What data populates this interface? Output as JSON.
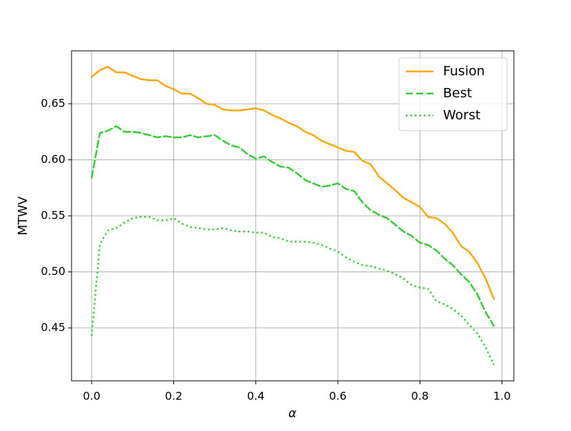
{
  "chart_data": {
    "type": "line",
    "xlabel": "α",
    "ylabel": "MTWV",
    "x": [
      0,
      0.02,
      0.04,
      0.06,
      0.08,
      0.1,
      0.12,
      0.14,
      0.16,
      0.18,
      0.2,
      0.22,
      0.24,
      0.26,
      0.28,
      0.3,
      0.32,
      0.34,
      0.36,
      0.38,
      0.4,
      0.42,
      0.44,
      0.46,
      0.48,
      0.5,
      0.52,
      0.54,
      0.56,
      0.58,
      0.6,
      0.62,
      0.64,
      0.66,
      0.68,
      0.7,
      0.72,
      0.74,
      0.76,
      0.78,
      0.8,
      0.82,
      0.84,
      0.86,
      0.88,
      0.9,
      0.92,
      0.94,
      0.96,
      0.98
    ],
    "series": [
      {
        "name": "Fusion",
        "color": "#ffa500",
        "linestyle": "solid",
        "values": [
          0.674,
          0.68,
          0.683,
          0.678,
          0.678,
          0.675,
          0.672,
          0.671,
          0.671,
          0.666,
          0.663,
          0.659,
          0.659,
          0.655,
          0.65,
          0.649,
          0.645,
          0.644,
          0.644,
          0.645,
          0.646,
          0.644,
          0.64,
          0.637,
          0.633,
          0.63,
          0.625,
          0.622,
          0.617,
          0.614,
          0.611,
          0.608,
          0.607,
          0.599,
          0.596,
          0.585,
          0.579,
          0.573,
          0.566,
          0.562,
          0.558,
          0.549,
          0.548,
          0.543,
          0.535,
          0.523,
          0.518,
          0.508,
          0.494,
          0.476
        ]
      },
      {
        "name": "Best",
        "color": "#32cd32",
        "linestyle": "dashed",
        "values": [
          0.584,
          0.624,
          0.626,
          0.63,
          0.625,
          0.625,
          0.624,
          0.622,
          0.62,
          0.621,
          0.62,
          0.62,
          0.622,
          0.62,
          0.621,
          0.622,
          0.617,
          0.613,
          0.611,
          0.605,
          0.601,
          0.603,
          0.598,
          0.594,
          0.593,
          0.588,
          0.582,
          0.579,
          0.576,
          0.577,
          0.579,
          0.574,
          0.572,
          0.562,
          0.555,
          0.551,
          0.548,
          0.542,
          0.536,
          0.532,
          0.526,
          0.524,
          0.519,
          0.512,
          0.506,
          0.498,
          0.491,
          0.48,
          0.464,
          0.452
        ]
      },
      {
        "name": "Worst",
        "color": "#32cd32",
        "linestyle": "dotted",
        "values": [
          0.443,
          0.525,
          0.537,
          0.539,
          0.544,
          0.548,
          0.549,
          0.549,
          0.546,
          0.546,
          0.548,
          0.543,
          0.54,
          0.539,
          0.538,
          0.538,
          0.539,
          0.537,
          0.536,
          0.536,
          0.535,
          0.535,
          0.531,
          0.53,
          0.527,
          0.527,
          0.527,
          0.526,
          0.524,
          0.521,
          0.518,
          0.513,
          0.509,
          0.506,
          0.505,
          0.503,
          0.501,
          0.498,
          0.494,
          0.488,
          0.486,
          0.485,
          0.474,
          0.471,
          0.467,
          0.461,
          0.453,
          0.445,
          0.433,
          0.417
        ]
      }
    ],
    "xlim": [
      -0.049,
      1.029
    ],
    "xticks": [
      {
        "value": 0,
        "label": "0.0"
      },
      0.2,
      0.4,
      0.6,
      0.8,
      {
        "value": 1,
        "label": "1.0"
      }
    ],
    "ylim": [
      0.4028,
      0.6972
    ],
    "yticks": [
      0.45,
      {
        "value": 0.5,
        "label": "0.50"
      },
      0.55,
      {
        "value": 0.6,
        "label": "0.60"
      },
      0.65
    ],
    "grid": true,
    "legend": "upper right"
  }
}
